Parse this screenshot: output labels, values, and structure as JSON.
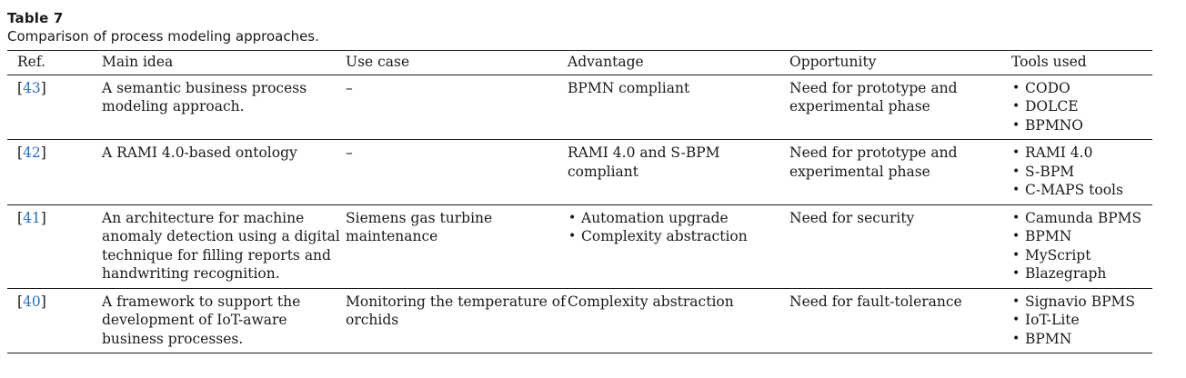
{
  "table": {
    "title": "Table 7",
    "caption": "Comparison of process modeling approaches.",
    "headers": {
      "ref": "Ref.",
      "main_idea": "Main idea",
      "use_case": "Use case",
      "advantage": "Advantage",
      "opportunity": "Opportunity",
      "tools_used": "Tools used"
    },
    "rows": [
      {
        "ref": "43",
        "main_idea": "A semantic business process modeling approach.",
        "use_case": "–",
        "advantage": [
          "BPMN compliant"
        ],
        "opportunity": "Need for prototype and experimental phase",
        "tools": [
          "CODO",
          "DOLCE",
          "BPMNO"
        ]
      },
      {
        "ref": "42",
        "main_idea": "A RAMI 4.0-based ontology",
        "use_case": "–",
        "advantage": [
          "RAMI 4.0 and S-BPM compliant"
        ],
        "opportunity": "Need for prototype and experimental phase",
        "tools": [
          "RAMI 4.0",
          "S-BPM",
          "C-MAPS tools"
        ]
      },
      {
        "ref": "41",
        "main_idea": "An architecture for machine anomaly detection using a digital technique for filling reports and handwriting recognition.",
        "use_case": "Siemens gas turbine maintenance",
        "advantage": [
          "Automation upgrade",
          "Complexity abstraction"
        ],
        "opportunity": "Need for security",
        "tools": [
          "Camunda BPMS",
          "BPMN",
          "MyScript",
          "Blazegraph"
        ]
      },
      {
        "ref": "40",
        "main_idea": "A framework to support the development of IoT-aware business processes.",
        "use_case": "Monitoring the temperature of orchids",
        "advantage": [
          "Complexity abstraction"
        ],
        "opportunity": "Need for fault-tolerance",
        "tools": [
          "Signavio BPMS",
          "IoT-Lite",
          "BPMN"
        ]
      }
    ]
  },
  "colors": {
    "text": "#1a1a1a",
    "reference_link": "#2a6ebb",
    "rule": "#1a1a1a"
  }
}
